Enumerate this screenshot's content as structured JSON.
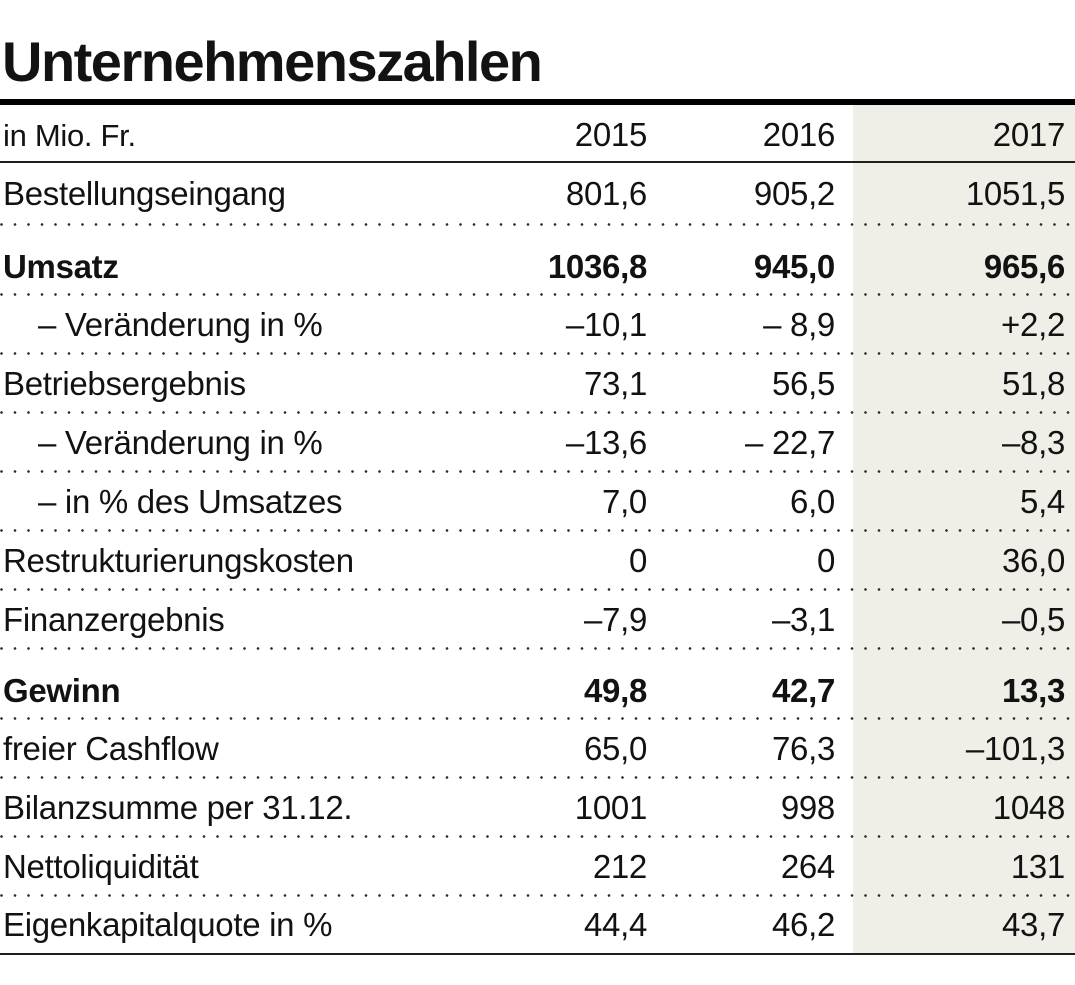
{
  "title": "Unternehmenszahlen",
  "table": {
    "unit_label": "in Mio. Fr.",
    "years": [
      "2015",
      "2016",
      "2017"
    ],
    "highlight_column": "2017",
    "highlight_color": "#efeee7",
    "rows": [
      {
        "label": "Bestellungseingang",
        "values": [
          "801,6",
          "905,2",
          "1051,5"
        ],
        "bold": false,
        "indent": false
      },
      {
        "label": "Umsatz",
        "values": [
          "1036,8",
          "945,0",
          "965,6"
        ],
        "bold": true,
        "indent": false
      },
      {
        "label": "– Veränderung in %",
        "values": [
          "–10,1",
          "– 8,9",
          "+2,2"
        ],
        "bold": false,
        "indent": true
      },
      {
        "label": "Betriebsergebnis",
        "values": [
          "73,1",
          "56,5",
          "51,8"
        ],
        "bold": false,
        "indent": false
      },
      {
        "label": "– Veränderung in %",
        "values": [
          "–13,6",
          "– 22,7",
          "–8,3"
        ],
        "bold": false,
        "indent": true
      },
      {
        "label": "– in % des Umsatzes",
        "values": [
          "7,0",
          "6,0",
          "5,4"
        ],
        "bold": false,
        "indent": true
      },
      {
        "label": "Restrukturierungskosten",
        "values": [
          "0",
          "0",
          "36,0"
        ],
        "bold": false,
        "indent": false
      },
      {
        "label": "Finanzergebnis",
        "values": [
          "–7,9",
          "–3,1",
          "–0,5"
        ],
        "bold": false,
        "indent": false
      },
      {
        "label": "Gewinn",
        "values": [
          "49,8",
          "42,7",
          "13,3"
        ],
        "bold": true,
        "indent": false
      },
      {
        "label": "freier Cashflow",
        "values": [
          "65,0",
          "76,3",
          "–101,3"
        ],
        "bold": false,
        "indent": false
      },
      {
        "label": "Bilanzsumme per 31.12.",
        "values": [
          "1001",
          "998",
          "1048"
        ],
        "bold": false,
        "indent": false
      },
      {
        "label": "Nettoliquidität",
        "values": [
          "212",
          "264",
          "131"
        ],
        "bold": false,
        "indent": false
      },
      {
        "label": "Eigenkapitalquote in %",
        "values": [
          "44,4",
          "46,2",
          "43,7"
        ],
        "bold": false,
        "indent": false
      }
    ]
  },
  "chart_data": {
    "type": "table",
    "title": "Unternehmenszahlen",
    "unit": "in Mio. Fr.",
    "columns": [
      "2015",
      "2016",
      "2017"
    ],
    "rows": [
      {
        "label": "Bestellungseingang",
        "values": [
          801.6,
          905.2,
          1051.5
        ]
      },
      {
        "label": "Umsatz",
        "values": [
          1036.8,
          945.0,
          965.6
        ]
      },
      {
        "label": "Umsatz – Veränderung in %",
        "values": [
          -10.1,
          -8.9,
          2.2
        ]
      },
      {
        "label": "Betriebsergebnis",
        "values": [
          73.1,
          56.5,
          51.8
        ]
      },
      {
        "label": "Betriebsergebnis – Veränderung in %",
        "values": [
          -13.6,
          -22.7,
          -8.3
        ]
      },
      {
        "label": "Betriebsergebnis – in % des Umsatzes",
        "values": [
          7.0,
          6.0,
          5.4
        ]
      },
      {
        "label": "Restrukturierungskosten",
        "values": [
          0,
          0,
          36.0
        ]
      },
      {
        "label": "Finanzergebnis",
        "values": [
          -7.9,
          -3.1,
          -0.5
        ]
      },
      {
        "label": "Gewinn",
        "values": [
          49.8,
          42.7,
          13.3
        ]
      },
      {
        "label": "freier Cashflow",
        "values": [
          65.0,
          76.3,
          -101.3
        ]
      },
      {
        "label": "Bilanzsumme per 31.12.",
        "values": [
          1001,
          998,
          1048
        ]
      },
      {
        "label": "Nettoliquidität",
        "values": [
          212,
          264,
          131
        ]
      },
      {
        "label": "Eigenkapitalquote in %",
        "values": [
          44.4,
          46.2,
          43.7
        ]
      }
    ],
    "layout": {
      "highlighted_column": "2017",
      "row_separators": "dotted",
      "grid": "horizontal-only"
    }
  }
}
